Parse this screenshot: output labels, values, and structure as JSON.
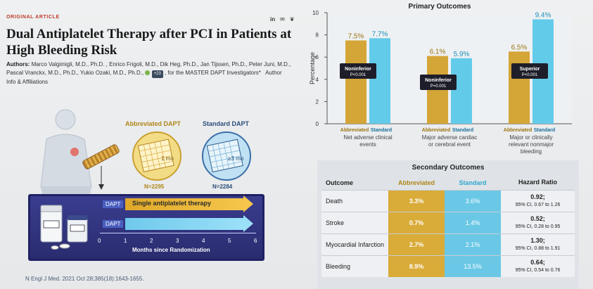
{
  "header": {
    "category": "ORIGINAL ARTICLE",
    "share_icons": [
      "in",
      "✉",
      "❦"
    ],
    "title": "Dual Antiplatelet Therapy after PCI in Patients at High Bleeding Risk"
  },
  "authors": {
    "label": "Authors:",
    "line": "Marco Valgimigli, M.D., Ph.D. , Enrico Frigoli, M.D., Dik Heg, Ph.D., Jan Tijssen, Ph.D., Peter Juni, M.D., Pascal Vranckx, M.D., Ph.D., Yukio Ozaki, M.D., Ph.D.,",
    "more_badge": "+23",
    "suffix": ", for the MASTER DAPT Investigators*",
    "info_link": "Author Info & Affiliations"
  },
  "citation": "N Engl J Med. 2021 Oct 28;385(18):1643-1655.",
  "arms": {
    "abbreviated": {
      "heading": "Abbreviated DAPT",
      "duration": "1 mo",
      "n": "N=2295"
    },
    "standard": {
      "heading": "Standard DAPT",
      "duration": "≥3 mo",
      "n": "N=2284"
    }
  },
  "timeline": {
    "row1_label": "DAPT",
    "row1_text": "Single antiplatelet therapy",
    "row2_label": "DAPT",
    "ticks": [
      "0",
      "1",
      "2",
      "3",
      "4",
      "5",
      "6"
    ],
    "axis_label": "Months since Randomization"
  },
  "colors": {
    "abbreviated": "#d4a537",
    "standard": "#63cbea",
    "panel": "#2f3180",
    "title_red": "#c0392b"
  },
  "chart_data": {
    "type": "bar",
    "title": "Primary Outcomes",
    "ylabel": "Percentage",
    "ylim": [
      0,
      10
    ],
    "yticks": [
      0,
      2,
      4,
      6,
      8,
      10
    ],
    "groups": [
      {
        "label": "Net adverse clinical events",
        "label_lines": [
          "Net adverse clinical",
          "events"
        ],
        "abbreviated": 7.5,
        "standard": 7.7,
        "abbr_text": "7.5%",
        "std_text": "7.7%",
        "badge": [
          "Noninferior",
          "P<0.001"
        ]
      },
      {
        "label": "Major adverse cardiac or cerebral event",
        "label_lines": [
          "Major adverse cardiac",
          "or cerebral event"
        ],
        "abbreviated": 6.1,
        "standard": 5.9,
        "abbr_text": "6.1%",
        "std_text": "5.9%",
        "badge": [
          "Noninferior",
          "P=0.001"
        ]
      },
      {
        "label": "Major or clinically relevant nonmajor bleeding",
        "label_lines": [
          "Major or clinically",
          "relevant nonmajor",
          "bleeding"
        ],
        "abbreviated": 6.5,
        "standard": 9.4,
        "abbr_text": "6.5%",
        "std_text": "9.4%",
        "badge": [
          "Superior",
          "P<0.001"
        ]
      }
    ],
    "series": [
      {
        "name": "Abbreviated",
        "key": "abbreviated"
      },
      {
        "name": "Standard",
        "key": "standard"
      }
    ]
  },
  "secondary": {
    "title": "Secondary Outcomes",
    "headers": [
      "Outcome",
      "Abbreviated",
      "Standard",
      "Hazard Ratio"
    ],
    "rows": [
      {
        "outcome": "Death",
        "abbr": "3.3%",
        "std": "3.6%",
        "hr": "0.92;",
        "ci": "95% CI, 0.67 to 1.26"
      },
      {
        "outcome": "Stroke",
        "abbr": "0.7%",
        "std": "1.4%",
        "hr": "0.52;",
        "ci": "95% CI, 0.28 to 0.95"
      },
      {
        "outcome": "Myocardial Infarction",
        "abbr": "2.7%",
        "std": "2.1%",
        "hr": "1.30;",
        "ci": "95% CI, 0.88 to 1.91"
      },
      {
        "outcome": "Bleeding",
        "abbr": "8.9%",
        "std": "13.5%",
        "hr": "0.64;",
        "ci": "95% CI, 0.54 to 0.76"
      }
    ]
  }
}
